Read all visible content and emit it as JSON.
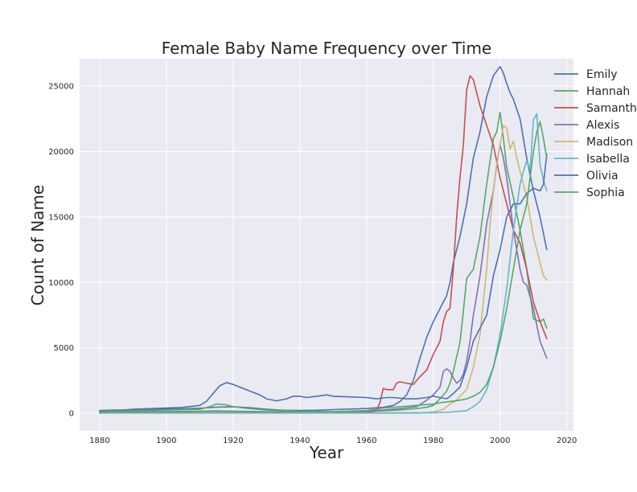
{
  "chart_data": {
    "type": "line",
    "title": "Female Baby Name Frequency over Time",
    "xlabel": "Year",
    "ylabel": "Count of Name",
    "xlim": [
      1874,
      2022
    ],
    "ylim": [
      -1350,
      27100
    ],
    "xticks": [
      1880,
      1900,
      1920,
      1940,
      1960,
      1980,
      2000,
      2020
    ],
    "yticks": [
      0,
      5000,
      10000,
      15000,
      20000,
      25000
    ],
    "grid": true,
    "legend_position": "top-right",
    "background": "#eaeaf2",
    "series": [
      {
        "name": "Emily",
        "color": "#4c72b0",
        "points": [
          [
            1880,
            210
          ],
          [
            1885,
            240
          ],
          [
            1890,
            260
          ],
          [
            1895,
            280
          ],
          [
            1900,
            320
          ],
          [
            1905,
            340
          ],
          [
            1910,
            380
          ],
          [
            1915,
            460
          ],
          [
            1920,
            500
          ],
          [
            1925,
            420
          ],
          [
            1930,
            300
          ],
          [
            1935,
            230
          ],
          [
            1940,
            210
          ],
          [
            1945,
            230
          ],
          [
            1950,
            280
          ],
          [
            1955,
            320
          ],
          [
            1960,
            360
          ],
          [
            1965,
            450
          ],
          [
            1968,
            600
          ],
          [
            1970,
            900
          ],
          [
            1972,
            1400
          ],
          [
            1974,
            2500
          ],
          [
            1976,
            4200
          ],
          [
            1978,
            5800
          ],
          [
            1980,
            7000
          ],
          [
            1982,
            8000
          ],
          [
            1984,
            9000
          ],
          [
            1985,
            10000
          ],
          [
            1986,
            11500
          ],
          [
            1988,
            13500
          ],
          [
            1990,
            16000
          ],
          [
            1992,
            19500
          ],
          [
            1994,
            21500
          ],
          [
            1996,
            24200
          ],
          [
            1998,
            25800
          ],
          [
            2000,
            26500
          ],
          [
            2001,
            26000
          ],
          [
            2002,
            25200
          ],
          [
            2003,
            24500
          ],
          [
            2004,
            24000
          ],
          [
            2006,
            22500
          ],
          [
            2008,
            19500
          ],
          [
            2010,
            17000
          ],
          [
            2012,
            15000
          ],
          [
            2014,
            12500
          ]
        ]
      },
      {
        "name": "Hannah",
        "color": "#55a868",
        "points": [
          [
            1880,
            110
          ],
          [
            1890,
            130
          ],
          [
            1900,
            130
          ],
          [
            1910,
            160
          ],
          [
            1915,
            180
          ],
          [
            1920,
            160
          ],
          [
            1930,
            120
          ],
          [
            1940,
            100
          ],
          [
            1950,
            110
          ],
          [
            1960,
            140
          ],
          [
            1965,
            180
          ],
          [
            1970,
            250
          ],
          [
            1975,
            350
          ],
          [
            1978,
            450
          ],
          [
            1980,
            600
          ],
          [
            1982,
            1100
          ],
          [
            1984,
            1700
          ],
          [
            1985,
            2300
          ],
          [
            1986,
            3200
          ],
          [
            1988,
            5400
          ],
          [
            1989,
            7800
          ],
          [
            1990,
            10300
          ],
          [
            1992,
            11000
          ],
          [
            1994,
            13500
          ],
          [
            1996,
            17500
          ],
          [
            1998,
            21000
          ],
          [
            1999,
            21500
          ],
          [
            2000,
            23000
          ],
          [
            2001,
            21000
          ],
          [
            2002,
            18800
          ],
          [
            2004,
            16500
          ],
          [
            2006,
            14000
          ],
          [
            2008,
            11000
          ],
          [
            2010,
            7200
          ],
          [
            2012,
            7000
          ],
          [
            2013,
            7200
          ],
          [
            2014,
            6500
          ]
        ]
      },
      {
        "name": "Samantha",
        "color": "#c44e52",
        "points": [
          [
            1880,
            60
          ],
          [
            1900,
            60
          ],
          [
            1920,
            60
          ],
          [
            1940,
            60
          ],
          [
            1960,
            60
          ],
          [
            1963,
            200
          ],
          [
            1964,
            800
          ],
          [
            1965,
            1900
          ],
          [
            1966,
            1800
          ],
          [
            1968,
            1800
          ],
          [
            1969,
            2300
          ],
          [
            1970,
            2400
          ],
          [
            1972,
            2300
          ],
          [
            1974,
            2200
          ],
          [
            1976,
            2800
          ],
          [
            1978,
            3300
          ],
          [
            1980,
            4500
          ],
          [
            1982,
            5500
          ],
          [
            1983,
            7000
          ],
          [
            1984,
            7800
          ],
          [
            1985,
            8000
          ],
          [
            1986,
            11000
          ],
          [
            1987,
            15000
          ],
          [
            1988,
            18000
          ],
          [
            1989,
            20500
          ],
          [
            1990,
            24700
          ],
          [
            1991,
            25800
          ],
          [
            1992,
            25500
          ],
          [
            1993,
            24500
          ],
          [
            1994,
            23500
          ],
          [
            1996,
            22000
          ],
          [
            1998,
            20500
          ],
          [
            2000,
            18000
          ],
          [
            2002,
            16000
          ],
          [
            2004,
            14000
          ],
          [
            2006,
            13000
          ],
          [
            2008,
            11000
          ],
          [
            2010,
            8500
          ],
          [
            2012,
            7000
          ],
          [
            2014,
            5700
          ]
        ]
      },
      {
        "name": "Alexis",
        "color": "#8172b2",
        "points": [
          [
            1880,
            40
          ],
          [
            1920,
            40
          ],
          [
            1940,
            50
          ],
          [
            1960,
            150
          ],
          [
            1965,
            250
          ],
          [
            1970,
            350
          ],
          [
            1975,
            500
          ],
          [
            1978,
            1000
          ],
          [
            1980,
            1400
          ],
          [
            1982,
            2000
          ],
          [
            1983,
            3200
          ],
          [
            1984,
            3400
          ],
          [
            1985,
            3200
          ],
          [
            1986,
            2700
          ],
          [
            1987,
            2300
          ],
          [
            1988,
            2500
          ],
          [
            1989,
            3000
          ],
          [
            1990,
            4000
          ],
          [
            1991,
            5500
          ],
          [
            1992,
            7500
          ],
          [
            1993,
            9000
          ],
          [
            1994,
            10500
          ],
          [
            1995,
            12500
          ],
          [
            1996,
            14500
          ],
          [
            1998,
            17000
          ],
          [
            1999,
            19000
          ],
          [
            2000,
            20500
          ],
          [
            2001,
            19500
          ],
          [
            2002,
            18000
          ],
          [
            2003,
            16000
          ],
          [
            2004,
            14000
          ],
          [
            2005,
            12500
          ],
          [
            2006,
            11000
          ],
          [
            2007,
            10000
          ],
          [
            2008,
            9800
          ],
          [
            2010,
            8000
          ],
          [
            2012,
            5500
          ],
          [
            2014,
            4200
          ]
        ]
      },
      {
        "name": "Madison",
        "color": "#ccb974",
        "points": [
          [
            1880,
            0
          ],
          [
            1940,
            0
          ],
          [
            1960,
            0
          ],
          [
            1975,
            10
          ],
          [
            1980,
            100
          ],
          [
            1983,
            300
          ],
          [
            1985,
            700
          ],
          [
            1987,
            1000
          ],
          [
            1988,
            1300
          ],
          [
            1990,
            1800
          ],
          [
            1992,
            3500
          ],
          [
            1994,
            6000
          ],
          [
            1996,
            11000
          ],
          [
            1997,
            14500
          ],
          [
            1998,
            17000
          ],
          [
            1999,
            19000
          ],
          [
            2000,
            20500
          ],
          [
            2001,
            22000
          ],
          [
            2002,
            21800
          ],
          [
            2003,
            20200
          ],
          [
            2004,
            20800
          ],
          [
            2005,
            19500
          ],
          [
            2006,
            18500
          ],
          [
            2008,
            16500
          ],
          [
            2010,
            13500
          ],
          [
            2012,
            11500
          ],
          [
            2013,
            10500
          ],
          [
            2014,
            10200
          ]
        ]
      },
      {
        "name": "Isabella",
        "color": "#64b5cd",
        "points": [
          [
            1880,
            30
          ],
          [
            1920,
            30
          ],
          [
            1940,
            30
          ],
          [
            1960,
            30
          ],
          [
            1980,
            40
          ],
          [
            1985,
            80
          ],
          [
            1990,
            200
          ],
          [
            1992,
            500
          ],
          [
            1994,
            900
          ],
          [
            1996,
            1800
          ],
          [
            1998,
            3500
          ],
          [
            2000,
            6000
          ],
          [
            2002,
            9500
          ],
          [
            2004,
            14000
          ],
          [
            2006,
            17500
          ],
          [
            2007,
            18500
          ],
          [
            2008,
            19300
          ],
          [
            2009,
            18600
          ],
          [
            2010,
            22400
          ],
          [
            2011,
            22900
          ],
          [
            2012,
            19000
          ],
          [
            2013,
            17800
          ],
          [
            2014,
            17000
          ]
        ]
      },
      {
        "name": "Olivia",
        "color": "#4c72b0",
        "points": [
          [
            1880,
            100
          ],
          [
            1885,
            200
          ],
          [
            1890,
            300
          ],
          [
            1895,
            350
          ],
          [
            1900,
            400
          ],
          [
            1905,
            450
          ],
          [
            1910,
            600
          ],
          [
            1912,
            900
          ],
          [
            1914,
            1500
          ],
          [
            1916,
            2100
          ],
          [
            1918,
            2350
          ],
          [
            1920,
            2200
          ],
          [
            1922,
            2000
          ],
          [
            1925,
            1700
          ],
          [
            1928,
            1400
          ],
          [
            1930,
            1100
          ],
          [
            1933,
            950
          ],
          [
            1936,
            1100
          ],
          [
            1938,
            1300
          ],
          [
            1940,
            1300
          ],
          [
            1942,
            1200
          ],
          [
            1945,
            1300
          ],
          [
            1948,
            1400
          ],
          [
            1950,
            1300
          ],
          [
            1955,
            1250
          ],
          [
            1960,
            1200
          ],
          [
            1963,
            1100
          ],
          [
            1966,
            1200
          ],
          [
            1968,
            1200
          ],
          [
            1970,
            1150
          ],
          [
            1972,
            1100
          ],
          [
            1975,
            1100
          ],
          [
            1978,
            1200
          ],
          [
            1980,
            1300
          ],
          [
            1982,
            1200
          ],
          [
            1984,
            1100
          ],
          [
            1986,
            1500
          ],
          [
            1988,
            2000
          ],
          [
            1990,
            3500
          ],
          [
            1992,
            5500
          ],
          [
            1994,
            6500
          ],
          [
            1996,
            7500
          ],
          [
            1998,
            10500
          ],
          [
            2000,
            12500
          ],
          [
            2002,
            15000
          ],
          [
            2004,
            16000
          ],
          [
            2006,
            16000
          ],
          [
            2008,
            16800
          ],
          [
            2010,
            17200
          ],
          [
            2012,
            17000
          ],
          [
            2013,
            17500
          ],
          [
            2014,
            19800
          ]
        ]
      },
      {
        "name": "Sophia",
        "color": "#55a868",
        "points": [
          [
            1880,
            150
          ],
          [
            1890,
            200
          ],
          [
            1900,
            250
          ],
          [
            1910,
            300
          ],
          [
            1913,
            500
          ],
          [
            1915,
            700
          ],
          [
            1918,
            650
          ],
          [
            1920,
            500
          ],
          [
            1925,
            350
          ],
          [
            1930,
            250
          ],
          [
            1940,
            150
          ],
          [
            1950,
            120
          ],
          [
            1960,
            200
          ],
          [
            1965,
            400
          ],
          [
            1970,
            500
          ],
          [
            1975,
            600
          ],
          [
            1980,
            700
          ],
          [
            1982,
            800
          ],
          [
            1985,
            900
          ],
          [
            1988,
            1000
          ],
          [
            1990,
            1100
          ],
          [
            1992,
            1300
          ],
          [
            1994,
            1600
          ],
          [
            1996,
            2200
          ],
          [
            1998,
            3500
          ],
          [
            2000,
            5500
          ],
          [
            2002,
            8000
          ],
          [
            2004,
            11000
          ],
          [
            2006,
            14000
          ],
          [
            2008,
            16000
          ],
          [
            2010,
            20000
          ],
          [
            2011,
            21500
          ],
          [
            2012,
            22300
          ],
          [
            2013,
            21000
          ],
          [
            2014,
            19500
          ]
        ]
      }
    ]
  }
}
